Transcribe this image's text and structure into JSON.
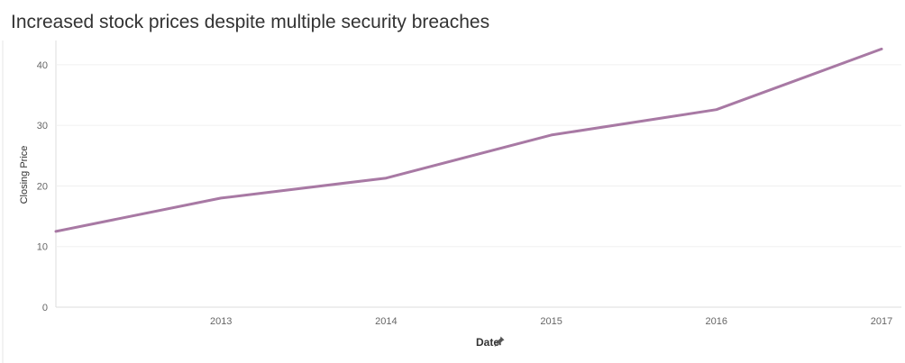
{
  "chart_data": {
    "type": "line",
    "title": "Increased stock prices despite multiple security breaches",
    "xlabel": "Date",
    "ylabel": "Closing Price",
    "x": [
      2012,
      2013,
      2014,
      2015,
      2016,
      2017
    ],
    "x_tick_labels": [
      "2013",
      "2014",
      "2015",
      "2016",
      "2017"
    ],
    "x_ticks": [
      2013,
      2014,
      2015,
      2016,
      2017
    ],
    "xlim": [
      2012,
      2017
    ],
    "y_ticks": [
      0,
      10,
      20,
      30,
      40
    ],
    "y_tick_labels": [
      "0",
      "10",
      "20",
      "30",
      "40"
    ],
    "ylim": [
      0,
      44
    ],
    "series": [
      {
        "name": "Closing Price",
        "values": [
          12.5,
          18.0,
          21.3,
          28.4,
          32.6,
          42.6
        ],
        "color": "#a879a4"
      }
    ],
    "grid": true,
    "legend": "none",
    "axis_icon": "pin-icon"
  }
}
